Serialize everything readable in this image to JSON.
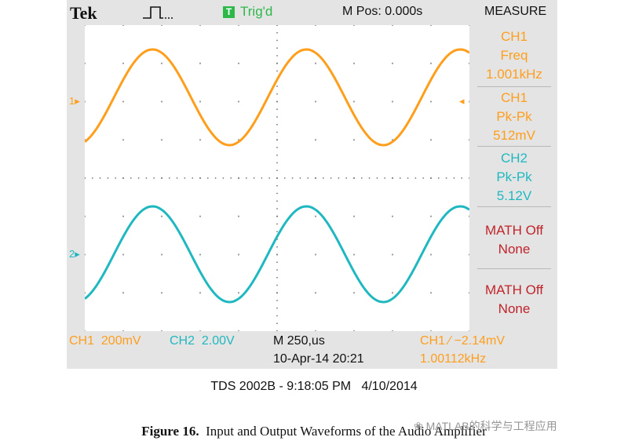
{
  "header": {
    "brand": "Tek",
    "trigger_icon": "T",
    "trigger_status": "Trig'd",
    "m_pos": "M Pos: 0.000s",
    "measure_title": "MEASURE"
  },
  "measurements": [
    {
      "l1": "CH1",
      "l2": "Freq",
      "l3": "1.001kHz"
    },
    {
      "l1": "CH1",
      "l2": "Pk-Pk",
      "l3": "512mV"
    },
    {
      "l1": "CH2",
      "l2": "Pk-Pk",
      "l3": "5.12V"
    },
    {
      "l1": "MATH Off",
      "l2": "None"
    },
    {
      "l1": "MATH Off",
      "l2": "None"
    }
  ],
  "markers": {
    "ch1": "1",
    "ch2": "2"
  },
  "bottom": {
    "ch1_scale": "CH1  200mV",
    "ch2_scale": "CH2  2.00V",
    "timebase": "M 250,us",
    "datetime": "10-Apr-14 20:21",
    "trigger_info": "CH1 ∕ −2.14mV",
    "trigger_freq": "1.00112kHz"
  },
  "captions": {
    "device": "TDS 2002B - 9:18:05 PM   4/10/2014",
    "figure_label": "Figure 16.",
    "figure_text": "Input and Output Waveforms of the Audio Amplifier",
    "watermark": "MATLAB的科学与工程应用"
  },
  "colors": {
    "ch1": "#ff9e1b",
    "ch2": "#20b8c0",
    "math": "#c0242a",
    "trigger": "#2db84a"
  },
  "chart_data": {
    "type": "line",
    "grid": true,
    "series": [
      {
        "name": "CH1",
        "frequency_khz": 1.001,
        "pk_pk_mV": 512,
        "cycles_shown": 2.5
      },
      {
        "name": "CH2",
        "frequency_khz": 1.001,
        "pk_pk_V": 5.12,
        "cycles_shown": 2.5
      }
    ]
  }
}
